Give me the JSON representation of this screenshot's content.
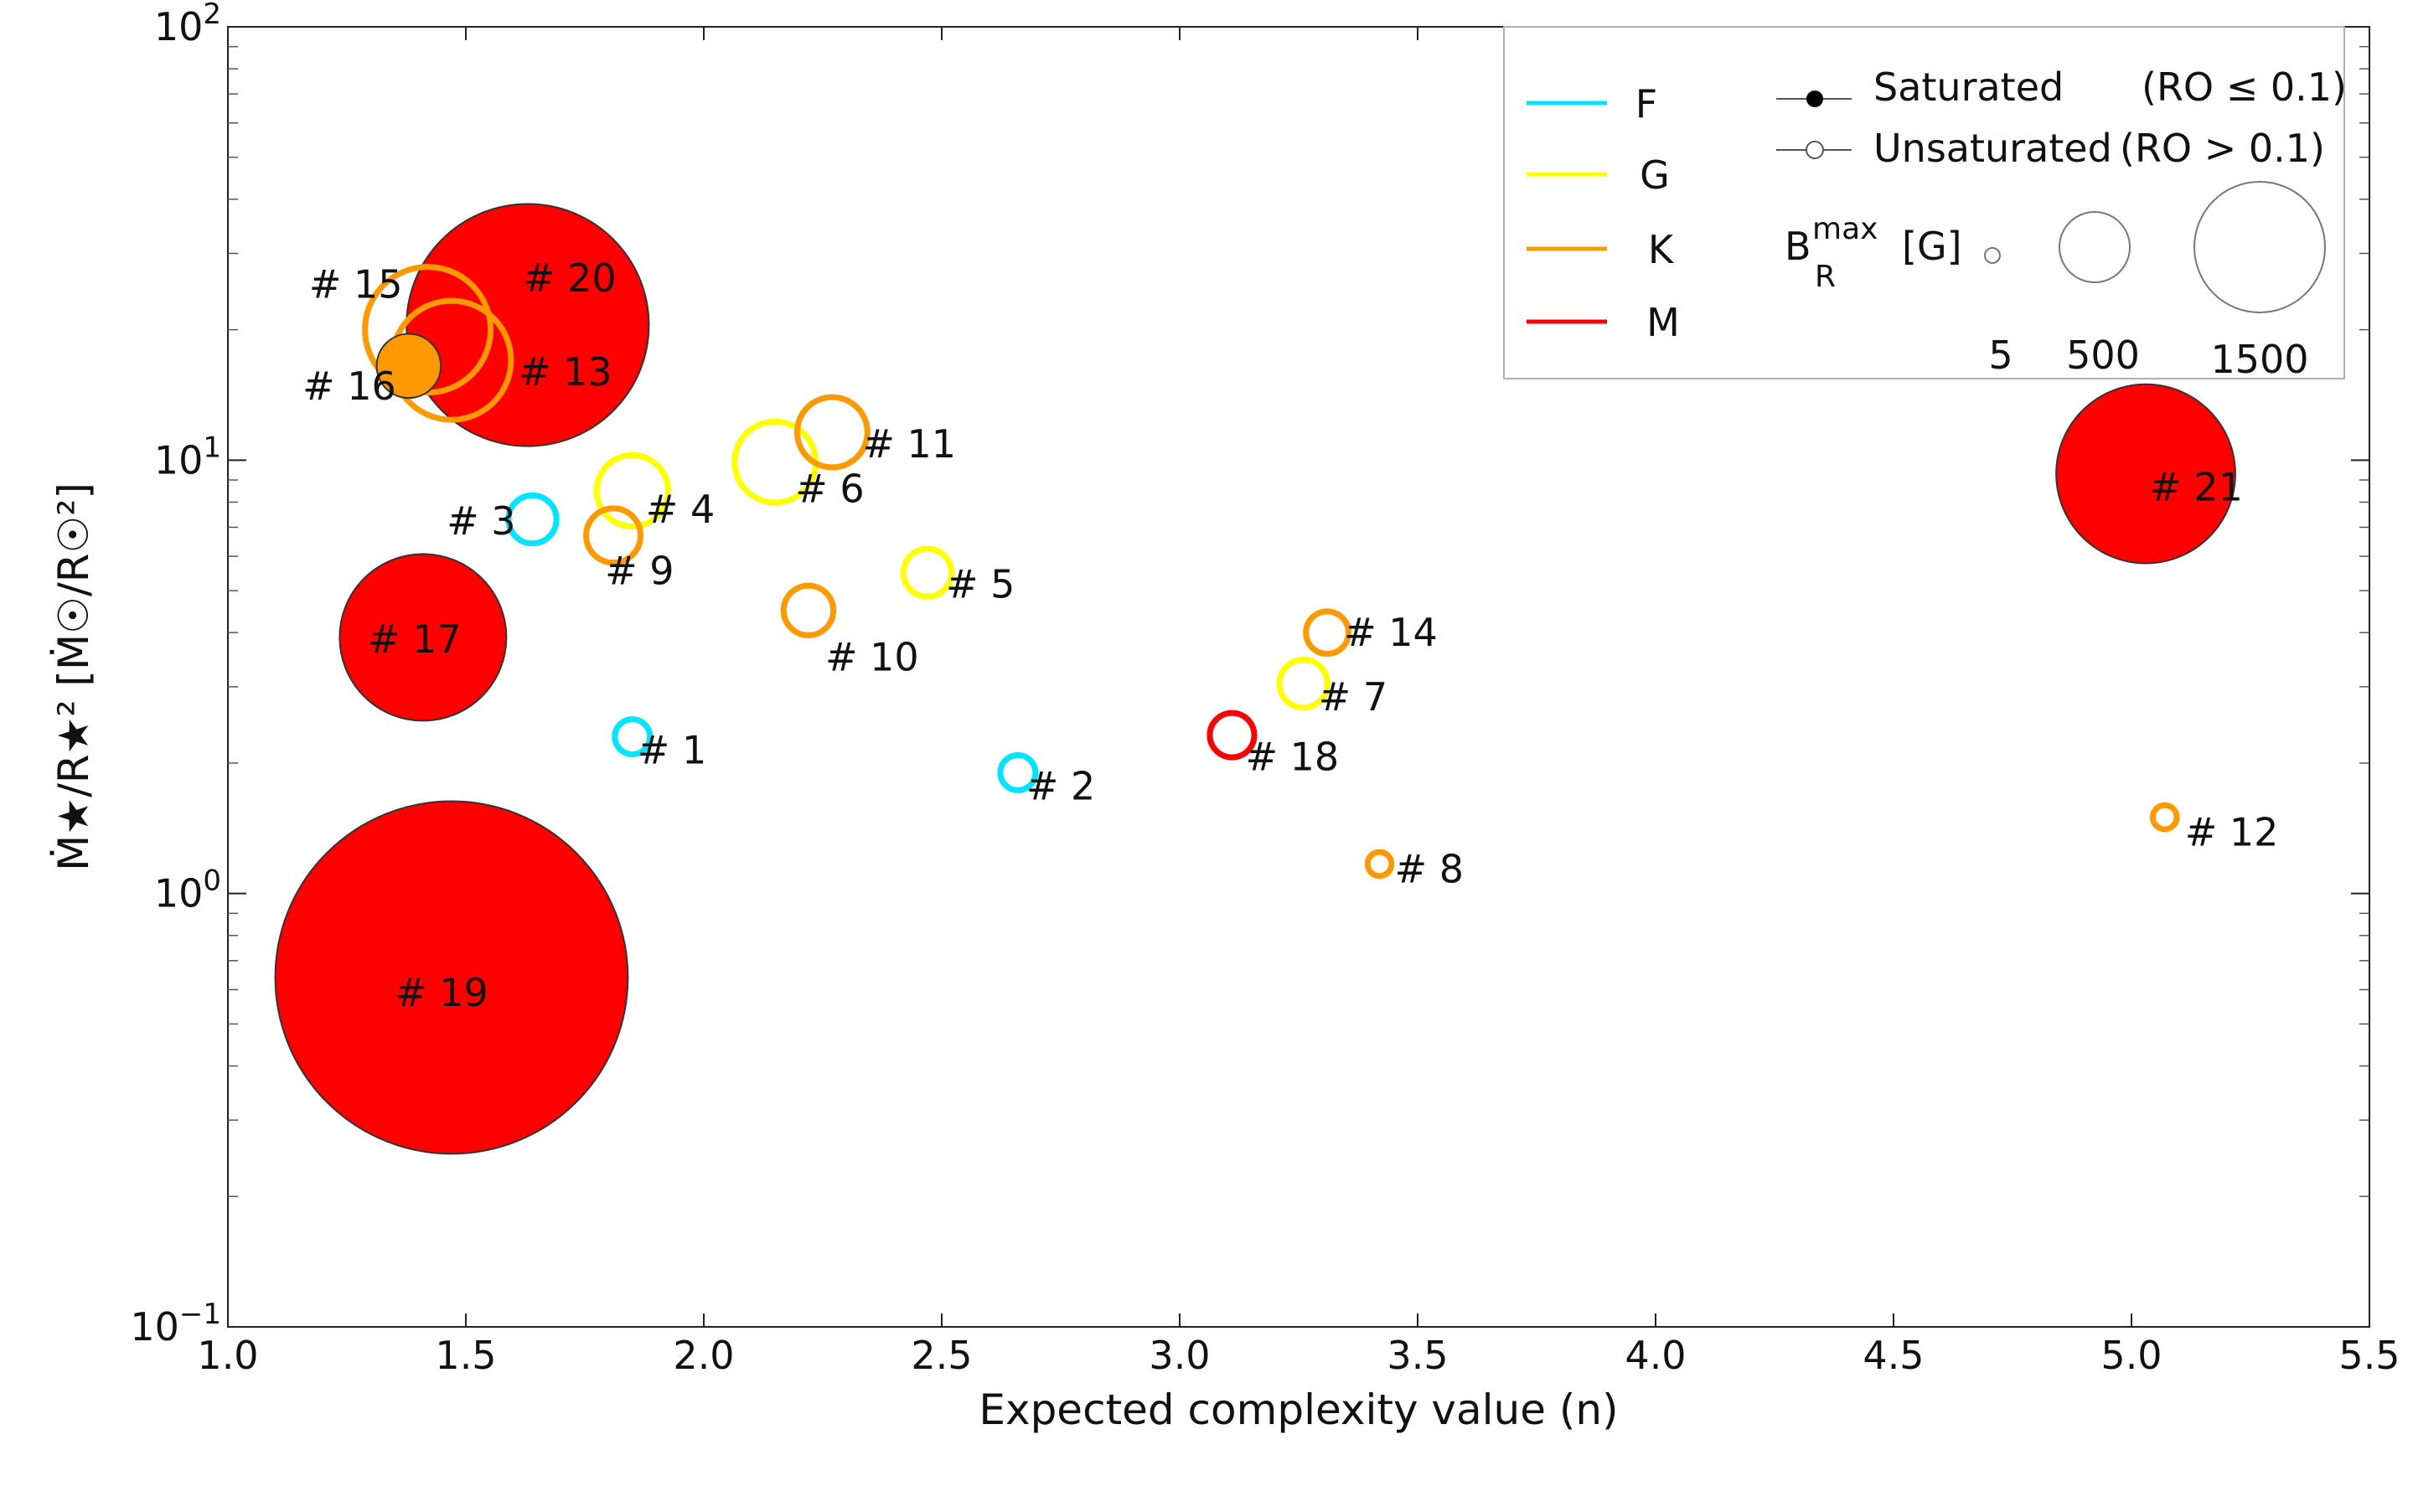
{
  "chart_data": {
    "type": "scatter",
    "xlabel": "Expected complexity value (n)",
    "ylabel": "Ṁ★/R★² [Ṁ☉/R☉²]",
    "xlim": [
      1.0,
      5.5
    ],
    "ylim": [
      0.1,
      100
    ],
    "yscale": "log",
    "x_ticks": [
      "1.0",
      "1.5",
      "2.0",
      "2.5",
      "3.0",
      "3.5",
      "4.0",
      "4.5",
      "5.0",
      "5.5"
    ],
    "y_ticks": [
      {
        "value": 0.1,
        "base": "10",
        "exp": "−1"
      },
      {
        "value": 1,
        "base": "10",
        "exp": "0"
      },
      {
        "value": 10,
        "base": "10",
        "exp": "1"
      },
      {
        "value": 100,
        "base": "10",
        "exp": "2"
      }
    ],
    "grid": false,
    "legend_placement": "top-right",
    "type_colors": {
      "F": "#00e5ff",
      "G": "#ffff00",
      "K": "#ff9900",
      "M": "#ff0000"
    },
    "legend": {
      "types": [
        "F",
        "G",
        "K",
        "M"
      ],
      "saturated_label": "Saturated",
      "saturated_condition": "(RO ≤ 0.1)",
      "unsaturated_label": "Unsaturated",
      "unsaturated_condition": "(RO > 0.1)",
      "field_label_main": "B",
      "field_label_sup": "max",
      "field_label_sub": "R",
      "field_unit": "[G]",
      "sizes": [
        {
          "label": "5",
          "b": 5
        },
        {
          "label": "500",
          "b": 500
        },
        {
          "label": "1500",
          "b": 1500
        }
      ]
    },
    "points": [
      {
        "label": "# 1",
        "x": 1.85,
        "y": 2.3,
        "type": "F",
        "saturated": false,
        "b": 75
      },
      {
        "label": "# 2",
        "x": 2.66,
        "y": 1.9,
        "type": "F",
        "saturated": false,
        "b": 75
      },
      {
        "label": "# 3",
        "x": 1.64,
        "y": 7.3,
        "type": "F",
        "saturated": false,
        "b": 140
      },
      {
        "label": "# 4",
        "x": 1.85,
        "y": 8.5,
        "type": "G",
        "saturated": false,
        "b": 310
      },
      {
        "label": "# 5",
        "x": 2.47,
        "y": 5.5,
        "type": "G",
        "saturated": false,
        "b": 140
      },
      {
        "label": "# 6",
        "x": 2.15,
        "y": 9.9,
        "type": "G",
        "saturated": false,
        "b": 400
      },
      {
        "label": "# 7",
        "x": 3.26,
        "y": 3.05,
        "type": "G",
        "saturated": false,
        "b": 140
      },
      {
        "label": "# 8",
        "x": 3.42,
        "y": 1.17,
        "type": "K",
        "saturated": false,
        "b": 35
      },
      {
        "label": "# 9",
        "x": 1.81,
        "y": 6.7,
        "type": "K",
        "saturated": false,
        "b": 180
      },
      {
        "label": "# 10",
        "x": 2.22,
        "y": 4.5,
        "type": "K",
        "saturated": false,
        "b": 150
      },
      {
        "label": "# 11",
        "x": 2.27,
        "y": 11.6,
        "type": "K",
        "saturated": false,
        "b": 300
      },
      {
        "label": "# 12",
        "x": 5.07,
        "y": 1.5,
        "type": "K",
        "saturated": false,
        "b": 35
      },
      {
        "label": "# 13",
        "x": 1.47,
        "y": 17.0,
        "type": "K",
        "saturated": false,
        "b": 860
      },
      {
        "label": "# 14",
        "x": 3.31,
        "y": 4.0,
        "type": "K",
        "saturated": false,
        "b": 110
      },
      {
        "label": "# 15",
        "x": 1.42,
        "y": 20.0,
        "type": "K",
        "saturated": false,
        "b": 960
      },
      {
        "label": "# 16",
        "x": 1.38,
        "y": 16.5,
        "type": "K",
        "saturated": true,
        "b": 250
      },
      {
        "label": "# 17",
        "x": 1.41,
        "y": 3.9,
        "type": "M",
        "saturated": true,
        "b": 1690
      },
      {
        "label": "# 18",
        "x": 3.11,
        "y": 2.32,
        "type": "M",
        "saturated": false,
        "b": 120
      },
      {
        "label": "# 19",
        "x": 1.47,
        "y": 0.64,
        "type": "M",
        "saturated": true,
        "b": 7560
      },
      {
        "label": "# 20",
        "x": 1.63,
        "y": 20.5,
        "type": "M",
        "saturated": true,
        "b": 3570
      },
      {
        "label": "# 21",
        "x": 5.03,
        "y": 9.3,
        "type": "M",
        "saturated": true,
        "b": 1950
      }
    ]
  }
}
